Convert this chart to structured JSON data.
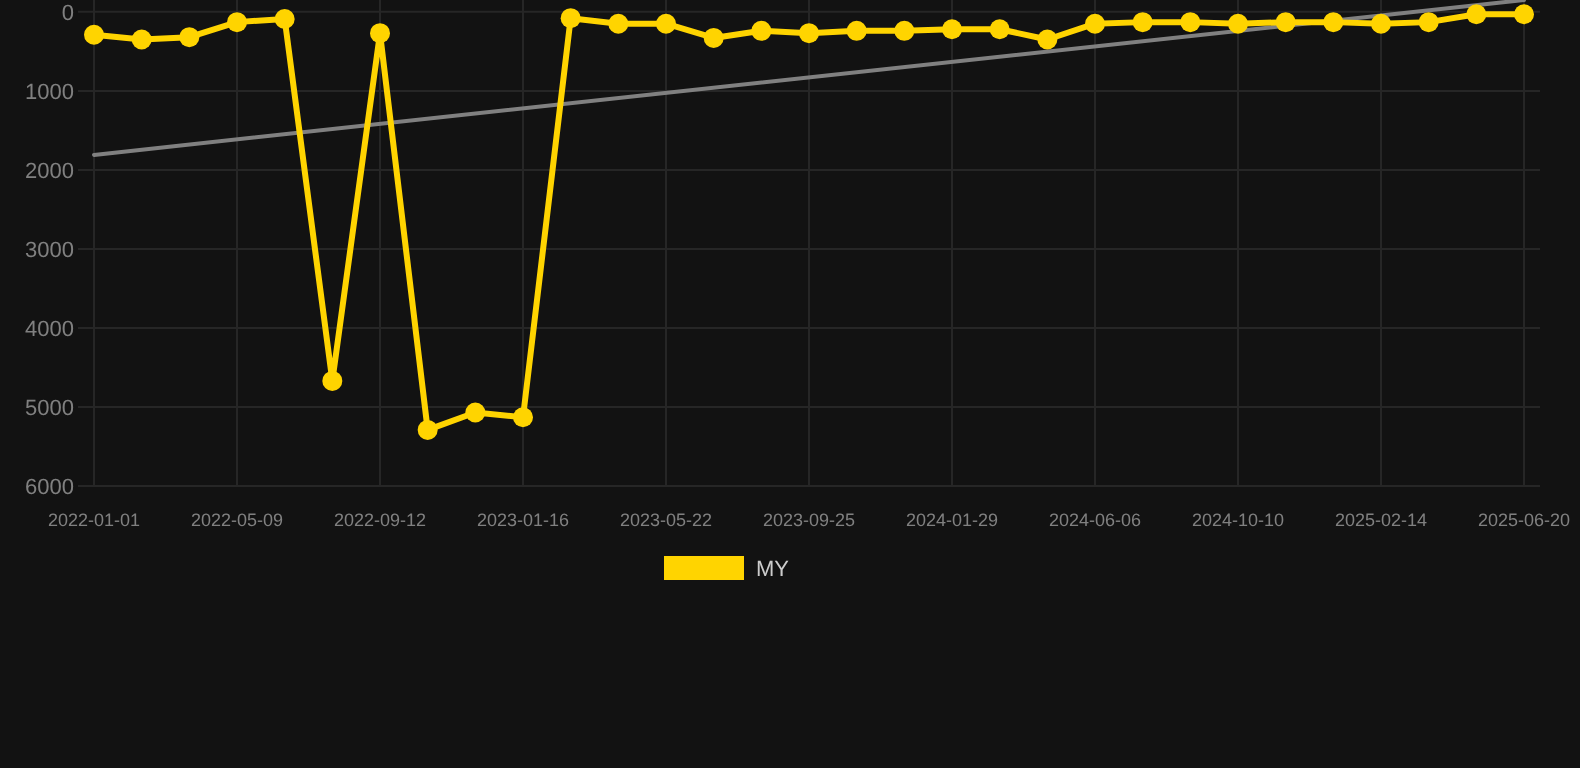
{
  "chart_data": {
    "type": "line",
    "categories": [
      "2022-01-01",
      null,
      null,
      "2022-05-09",
      null,
      null,
      "2022-09-12",
      null,
      null,
      "2023-01-16",
      null,
      null,
      "2023-05-22",
      null,
      null,
      "2023-09-25",
      null,
      null,
      "2024-01-29",
      null,
      null,
      "2024-06-06",
      null,
      null,
      "2024-10-10",
      null,
      null,
      "2025-02-14",
      null,
      null,
      "2025-06-20"
    ],
    "ylim": [
      6000,
      -150
    ],
    "yticks": [
      0,
      1000,
      2000,
      3000,
      4000,
      5000,
      6000
    ],
    "grid": true,
    "legend": "bottom",
    "series": [
      {
        "name": "MY",
        "color": "#ffd400",
        "marker": "circle",
        "values": [
          290,
          350,
          320,
          130,
          90,
          4670,
          270,
          5290,
          5070,
          5130,
          80,
          150,
          150,
          330,
          240,
          270,
          240,
          240,
          220,
          220,
          350,
          150,
          130,
          130,
          150,
          130,
          130,
          150,
          130,
          30,
          30
        ]
      },
      {
        "type": "line",
        "color": "#808080",
        "marker": "none",
        "values": [
          1810,
          null,
          null,
          null,
          null,
          null,
          null,
          null,
          null,
          null,
          null,
          null,
          null,
          null,
          null,
          null,
          null,
          null,
          null,
          null,
          null,
          null,
          null,
          null,
          null,
          null,
          null,
          null,
          null,
          null,
          -150
        ]
      }
    ]
  }
}
